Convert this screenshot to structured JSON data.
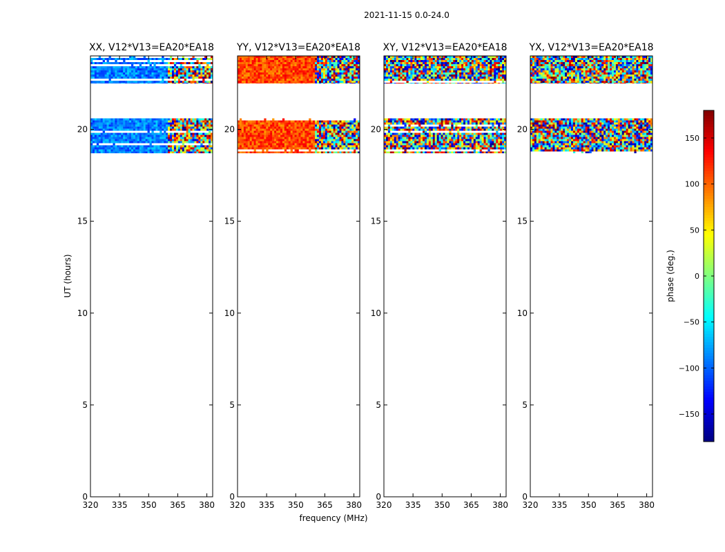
{
  "suptitle": "2021-11-15 0.0-24.0",
  "chart_data": {
    "type": "heatmap",
    "xlabel": "frequency (MHz)",
    "ylabel": "UT (hours)",
    "xlim": [
      320,
      383
    ],
    "ylim": [
      0,
      24
    ],
    "xticks": [
      320,
      335,
      350,
      365,
      380
    ],
    "yticks": [
      0,
      5,
      10,
      15,
      20
    ],
    "xtick_labels": [
      "320",
      "335",
      "350",
      "365",
      "380"
    ],
    "ytick_labels": [
      "0",
      "5",
      "10",
      "15",
      "20"
    ],
    "data_blocks_ut": [
      [
        18.7,
        20.6
      ],
      [
        22.5,
        24.0
      ]
    ],
    "transition_freq_mhz": 360,
    "panels": [
      {
        "title": "XX, V12*V13=EA20*EA18",
        "low_band_phase_deg": -90,
        "high_band": "noisy",
        "noise_deg": 30
      },
      {
        "title": "YY, V12*V13=EA20*EA18",
        "low_band_phase_deg": 110,
        "high_band": "noisy",
        "noise_deg": 30
      },
      {
        "title": "XY, V12*V13=EA20*EA18",
        "low_band_phase_deg": null,
        "high_band": "noisy",
        "noise_deg": 180
      },
      {
        "title": "YX, V12*V13=EA20*EA18",
        "low_band_phase_deg": null,
        "high_band": "noisy",
        "noise_deg": 180
      }
    ],
    "colorbar": {
      "label": "phase (deg.)",
      "range": [
        -180,
        180
      ],
      "ticks": [
        -150,
        -100,
        -50,
        0,
        50,
        100,
        150
      ],
      "tick_labels": [
        "−150",
        "−100",
        "−50",
        "0",
        "50",
        "100",
        "150"
      ],
      "colormap": "jet"
    }
  }
}
